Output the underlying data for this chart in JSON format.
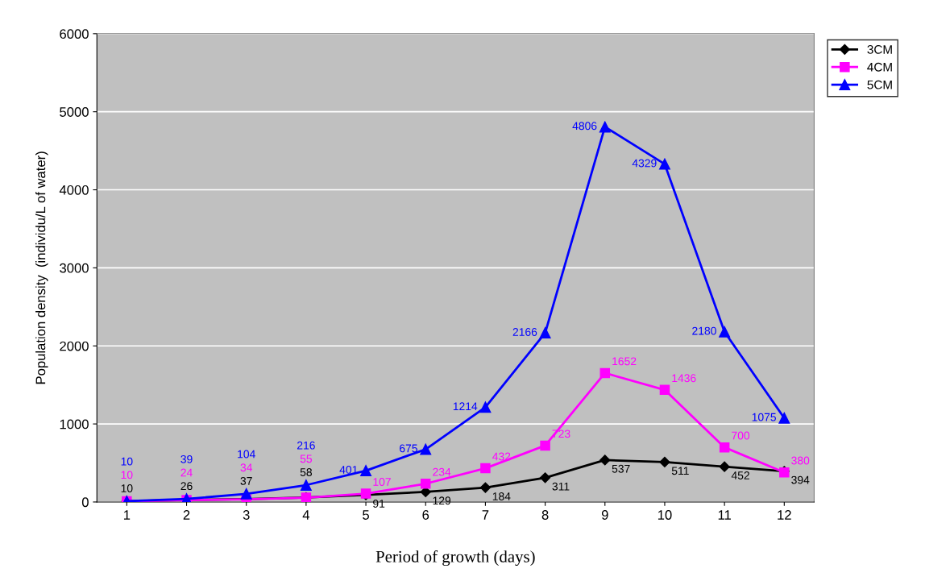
{
  "chart_data": {
    "type": "line",
    "xlabel": "Period of growth (days)",
    "ylabel": "Population density  (individu/L of water)",
    "categories": [
      "1",
      "2",
      "3",
      "4",
      "5",
      "6",
      "7",
      "8",
      "9",
      "10",
      "11",
      "12"
    ],
    "series": [
      {
        "name": "3CM",
        "color": "#000000",
        "marker": "diamond",
        "values": [
          10,
          26,
          37,
          58,
          91,
          129,
          184,
          311,
          537,
          511,
          452,
          394
        ]
      },
      {
        "name": "4CM",
        "color": "#ff00ff",
        "marker": "square",
        "values": [
          10,
          24,
          34,
          55,
          107,
          234,
          432,
          723,
          1652,
          1436,
          700,
          380
        ]
      },
      {
        "name": "5CM",
        "color": "#0000ff",
        "marker": "triangle",
        "values": [
          10,
          39,
          104,
          216,
          401,
          675,
          1214,
          2166,
          4806,
          4329,
          2180,
          1075
        ]
      }
    ],
    "ylim": [
      0,
      6000
    ],
    "yticks": [
      0,
      1000,
      2000,
      3000,
      4000,
      5000,
      6000
    ],
    "grid": "y",
    "legend": "top right",
    "data_labels": true,
    "line_style": "solid"
  }
}
